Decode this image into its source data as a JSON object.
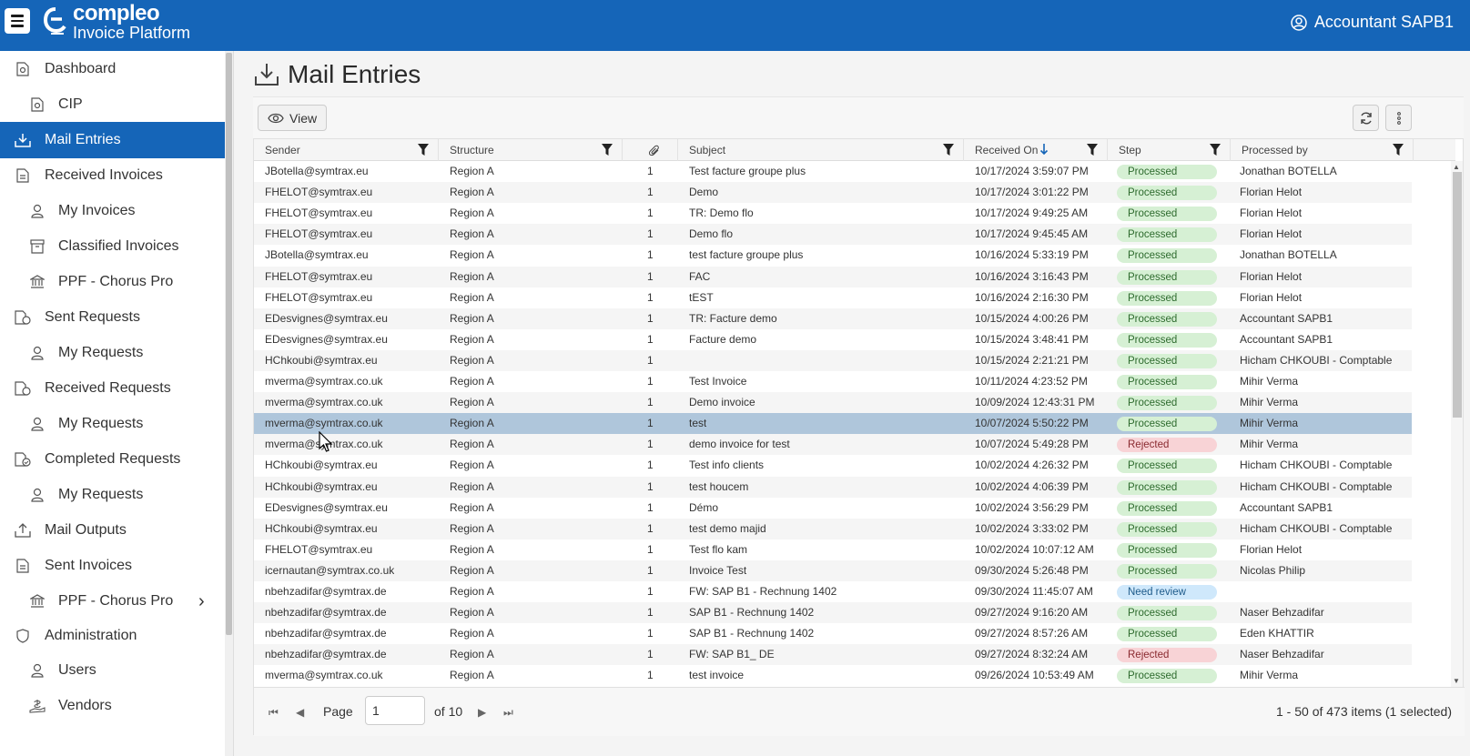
{
  "header": {
    "logo_title": "compleo",
    "logo_subtitle": "Invoice Platform",
    "user_name": "Accountant SAPB1",
    "brand_color": "#1565b8"
  },
  "sidebar": {
    "items": [
      {
        "label": "Dashboard",
        "icon": "dashboard-icon"
      },
      {
        "label": "CIP",
        "icon": "document-icon"
      },
      {
        "label": "Mail Entries",
        "icon": "inbox-download-icon",
        "active": true
      },
      {
        "label": "Received Invoices",
        "icon": "invoice-icon"
      },
      {
        "label": "My Invoices",
        "icon": "user-icon"
      },
      {
        "label": "Classified Invoices",
        "icon": "archive-icon"
      },
      {
        "label": "PPF - Chorus Pro",
        "icon": "institution-icon"
      },
      {
        "label": "Sent Requests",
        "icon": "request-sent-icon"
      },
      {
        "label": "My Requests",
        "icon": "user-icon"
      },
      {
        "label": "Received Requests",
        "icon": "request-received-icon"
      },
      {
        "label": "My Requests",
        "icon": "user-icon"
      },
      {
        "label": "Completed Requests",
        "icon": "request-completed-icon"
      },
      {
        "label": "My Requests",
        "icon": "user-icon"
      },
      {
        "label": "Mail Outputs",
        "icon": "upload-icon"
      },
      {
        "label": "Sent Invoices",
        "icon": "invoice-icon"
      },
      {
        "label": "PPF - Chorus Pro",
        "icon": "institution-icon"
      },
      {
        "label": "Administration",
        "icon": "shield-icon"
      },
      {
        "label": "Users",
        "icon": "user-icon"
      },
      {
        "label": "Vendors",
        "icon": "vendor-icon"
      }
    ]
  },
  "page": {
    "title": "Mail Entries",
    "view_label": "View"
  },
  "grid": {
    "columns": [
      "Sender",
      "Structure",
      "",
      "Subject",
      "Received On",
      "Step",
      "Processed by"
    ],
    "rows": [
      {
        "sender": "JBotella@symtrax.eu",
        "structure": "Region A",
        "att": "1",
        "subject": "Test facture groupe plus",
        "received": "10/17/2024 3:59:07 PM",
        "step": "Processed",
        "by": "Jonathan BOTELLA"
      },
      {
        "sender": "FHELOT@symtrax.eu",
        "structure": "Region A",
        "att": "1",
        "subject": "Demo",
        "received": "10/17/2024 3:01:22 PM",
        "step": "Processed",
        "by": "Florian Helot"
      },
      {
        "sender": "FHELOT@symtrax.eu",
        "structure": "Region A",
        "att": "1",
        "subject": "TR: Demo flo",
        "received": "10/17/2024 9:49:25 AM",
        "step": "Processed",
        "by": "Florian Helot"
      },
      {
        "sender": "FHELOT@symtrax.eu",
        "structure": "Region A",
        "att": "1",
        "subject": "Demo flo",
        "received": "10/17/2024 9:45:45 AM",
        "step": "Processed",
        "by": "Florian Helot"
      },
      {
        "sender": "JBotella@symtrax.eu",
        "structure": "Region A",
        "att": "1",
        "subject": "test facture groupe plus",
        "received": "10/16/2024 5:33:19 PM",
        "step": "Processed",
        "by": "Jonathan BOTELLA"
      },
      {
        "sender": "FHELOT@symtrax.eu",
        "structure": "Region A",
        "att": "1",
        "subject": "FAC",
        "received": "10/16/2024 3:16:43 PM",
        "step": "Processed",
        "by": "Florian Helot"
      },
      {
        "sender": "FHELOT@symtrax.eu",
        "structure": "Region A",
        "att": "1",
        "subject": "tEST",
        "received": "10/16/2024 2:16:30 PM",
        "step": "Processed",
        "by": "Florian Helot"
      },
      {
        "sender": "EDesvignes@symtrax.eu",
        "structure": "Region A",
        "att": "1",
        "subject": "TR: Facture demo",
        "received": "10/15/2024 4:00:26 PM",
        "step": "Processed",
        "by": "Accountant SAPB1"
      },
      {
        "sender": "EDesvignes@symtrax.eu",
        "structure": "Region A",
        "att": "1",
        "subject": "Facture demo",
        "received": "10/15/2024 3:48:41 PM",
        "step": "Processed",
        "by": "Accountant SAPB1"
      },
      {
        "sender": "HChkoubi@symtrax.eu",
        "structure": "Region A",
        "att": "1",
        "subject": "",
        "received": "10/15/2024 2:21:21 PM",
        "step": "Processed",
        "by": "Hicham CHKOUBI - Comptable"
      },
      {
        "sender": "mverma@symtrax.co.uk",
        "structure": "Region A",
        "att": "1",
        "subject": "Test Invoice",
        "received": "10/11/2024 4:23:52 PM",
        "step": "Processed",
        "by": "Mihir Verma"
      },
      {
        "sender": "mverma@symtrax.co.uk",
        "structure": "Region A",
        "att": "1",
        "subject": "Demo invoice",
        "received": "10/09/2024 12:43:31 PM",
        "step": "Processed",
        "by": "Mihir Verma"
      },
      {
        "sender": "mverma@symtrax.co.uk",
        "structure": "Region A",
        "att": "1",
        "subject": "test",
        "received": "10/07/2024 5:50:22 PM",
        "step": "Processed",
        "by": "Mihir Verma",
        "selected": true
      },
      {
        "sender": "mverma@symtrax.co.uk",
        "structure": "Region A",
        "att": "1",
        "subject": "demo invoice for test",
        "received": "10/07/2024 5:49:28 PM",
        "step": "Rejected",
        "by": "Mihir Verma"
      },
      {
        "sender": "HChkoubi@symtrax.eu",
        "structure": "Region A",
        "att": "1",
        "subject": "Test info clients",
        "received": "10/02/2024 4:26:32 PM",
        "step": "Processed",
        "by": "Hicham CHKOUBI - Comptable"
      },
      {
        "sender": "HChkoubi@symtrax.eu",
        "structure": "Region A",
        "att": "1",
        "subject": "test houcem",
        "received": "10/02/2024 4:06:39 PM",
        "step": "Processed",
        "by": "Hicham CHKOUBI - Comptable"
      },
      {
        "sender": "EDesvignes@symtrax.eu",
        "structure": "Region A",
        "att": "1",
        "subject": "Démo",
        "received": "10/02/2024 3:56:29 PM",
        "step": "Processed",
        "by": "Accountant SAPB1"
      },
      {
        "sender": "HChkoubi@symtrax.eu",
        "structure": "Region A",
        "att": "1",
        "subject": "test demo majid",
        "received": "10/02/2024 3:33:02 PM",
        "step": "Processed",
        "by": "Hicham CHKOUBI - Comptable"
      },
      {
        "sender": "FHELOT@symtrax.eu",
        "structure": "Region A",
        "att": "1",
        "subject": "Test flo kam",
        "received": "10/02/2024 10:07:12 AM",
        "step": "Processed",
        "by": "Florian Helot"
      },
      {
        "sender": "icernautan@symtrax.co.uk",
        "structure": "Region A",
        "att": "1",
        "subject": "Invoice Test",
        "received": "09/30/2024 5:26:48 PM",
        "step": "Processed",
        "by": "Nicolas Philip"
      },
      {
        "sender": "nbehzadifar@symtrax.de",
        "structure": "Region A",
        "att": "1",
        "subject": "FW: SAP B1 - Rechnung 1402",
        "received": "09/30/2024 11:45:07 AM",
        "step": "Need review",
        "by": ""
      },
      {
        "sender": "nbehzadifar@symtrax.de",
        "structure": "Region A",
        "att": "1",
        "subject": "SAP B1 - Rechnung 1402",
        "received": "09/27/2024 9:16:20 AM",
        "step": "Processed",
        "by": "Naser Behzadifar"
      },
      {
        "sender": "nbehzadifar@symtrax.de",
        "structure": "Region A",
        "att": "1",
        "subject": "SAP B1 - Rechnung 1402",
        "received": "09/27/2024 8:57:26 AM",
        "step": "Processed",
        "by": "Eden KHATTIR"
      },
      {
        "sender": "nbehzadifar@symtrax.de",
        "structure": "Region A",
        "att": "1",
        "subject": "FW: SAP B1_ DE",
        "received": "09/27/2024 8:32:24 AM",
        "step": "Rejected",
        "by": "Naser Behzadifar"
      },
      {
        "sender": "mverma@symtrax.co.uk",
        "structure": "Region A",
        "att": "1",
        "subject": "test invoice",
        "received": "09/26/2024 10:53:49 AM",
        "step": "Processed",
        "by": "Mihir Verma"
      }
    ]
  },
  "pager": {
    "page_label": "Page",
    "page_value": "1",
    "of_label": "of 10",
    "summary": "1 - 50 of 473 items (1 selected)"
  },
  "colors": {
    "processed_bg": "#d6f0d4",
    "rejected_bg": "#f8d3d6",
    "review_bg": "#cfe8fb",
    "selected_row": "#afc6db"
  }
}
